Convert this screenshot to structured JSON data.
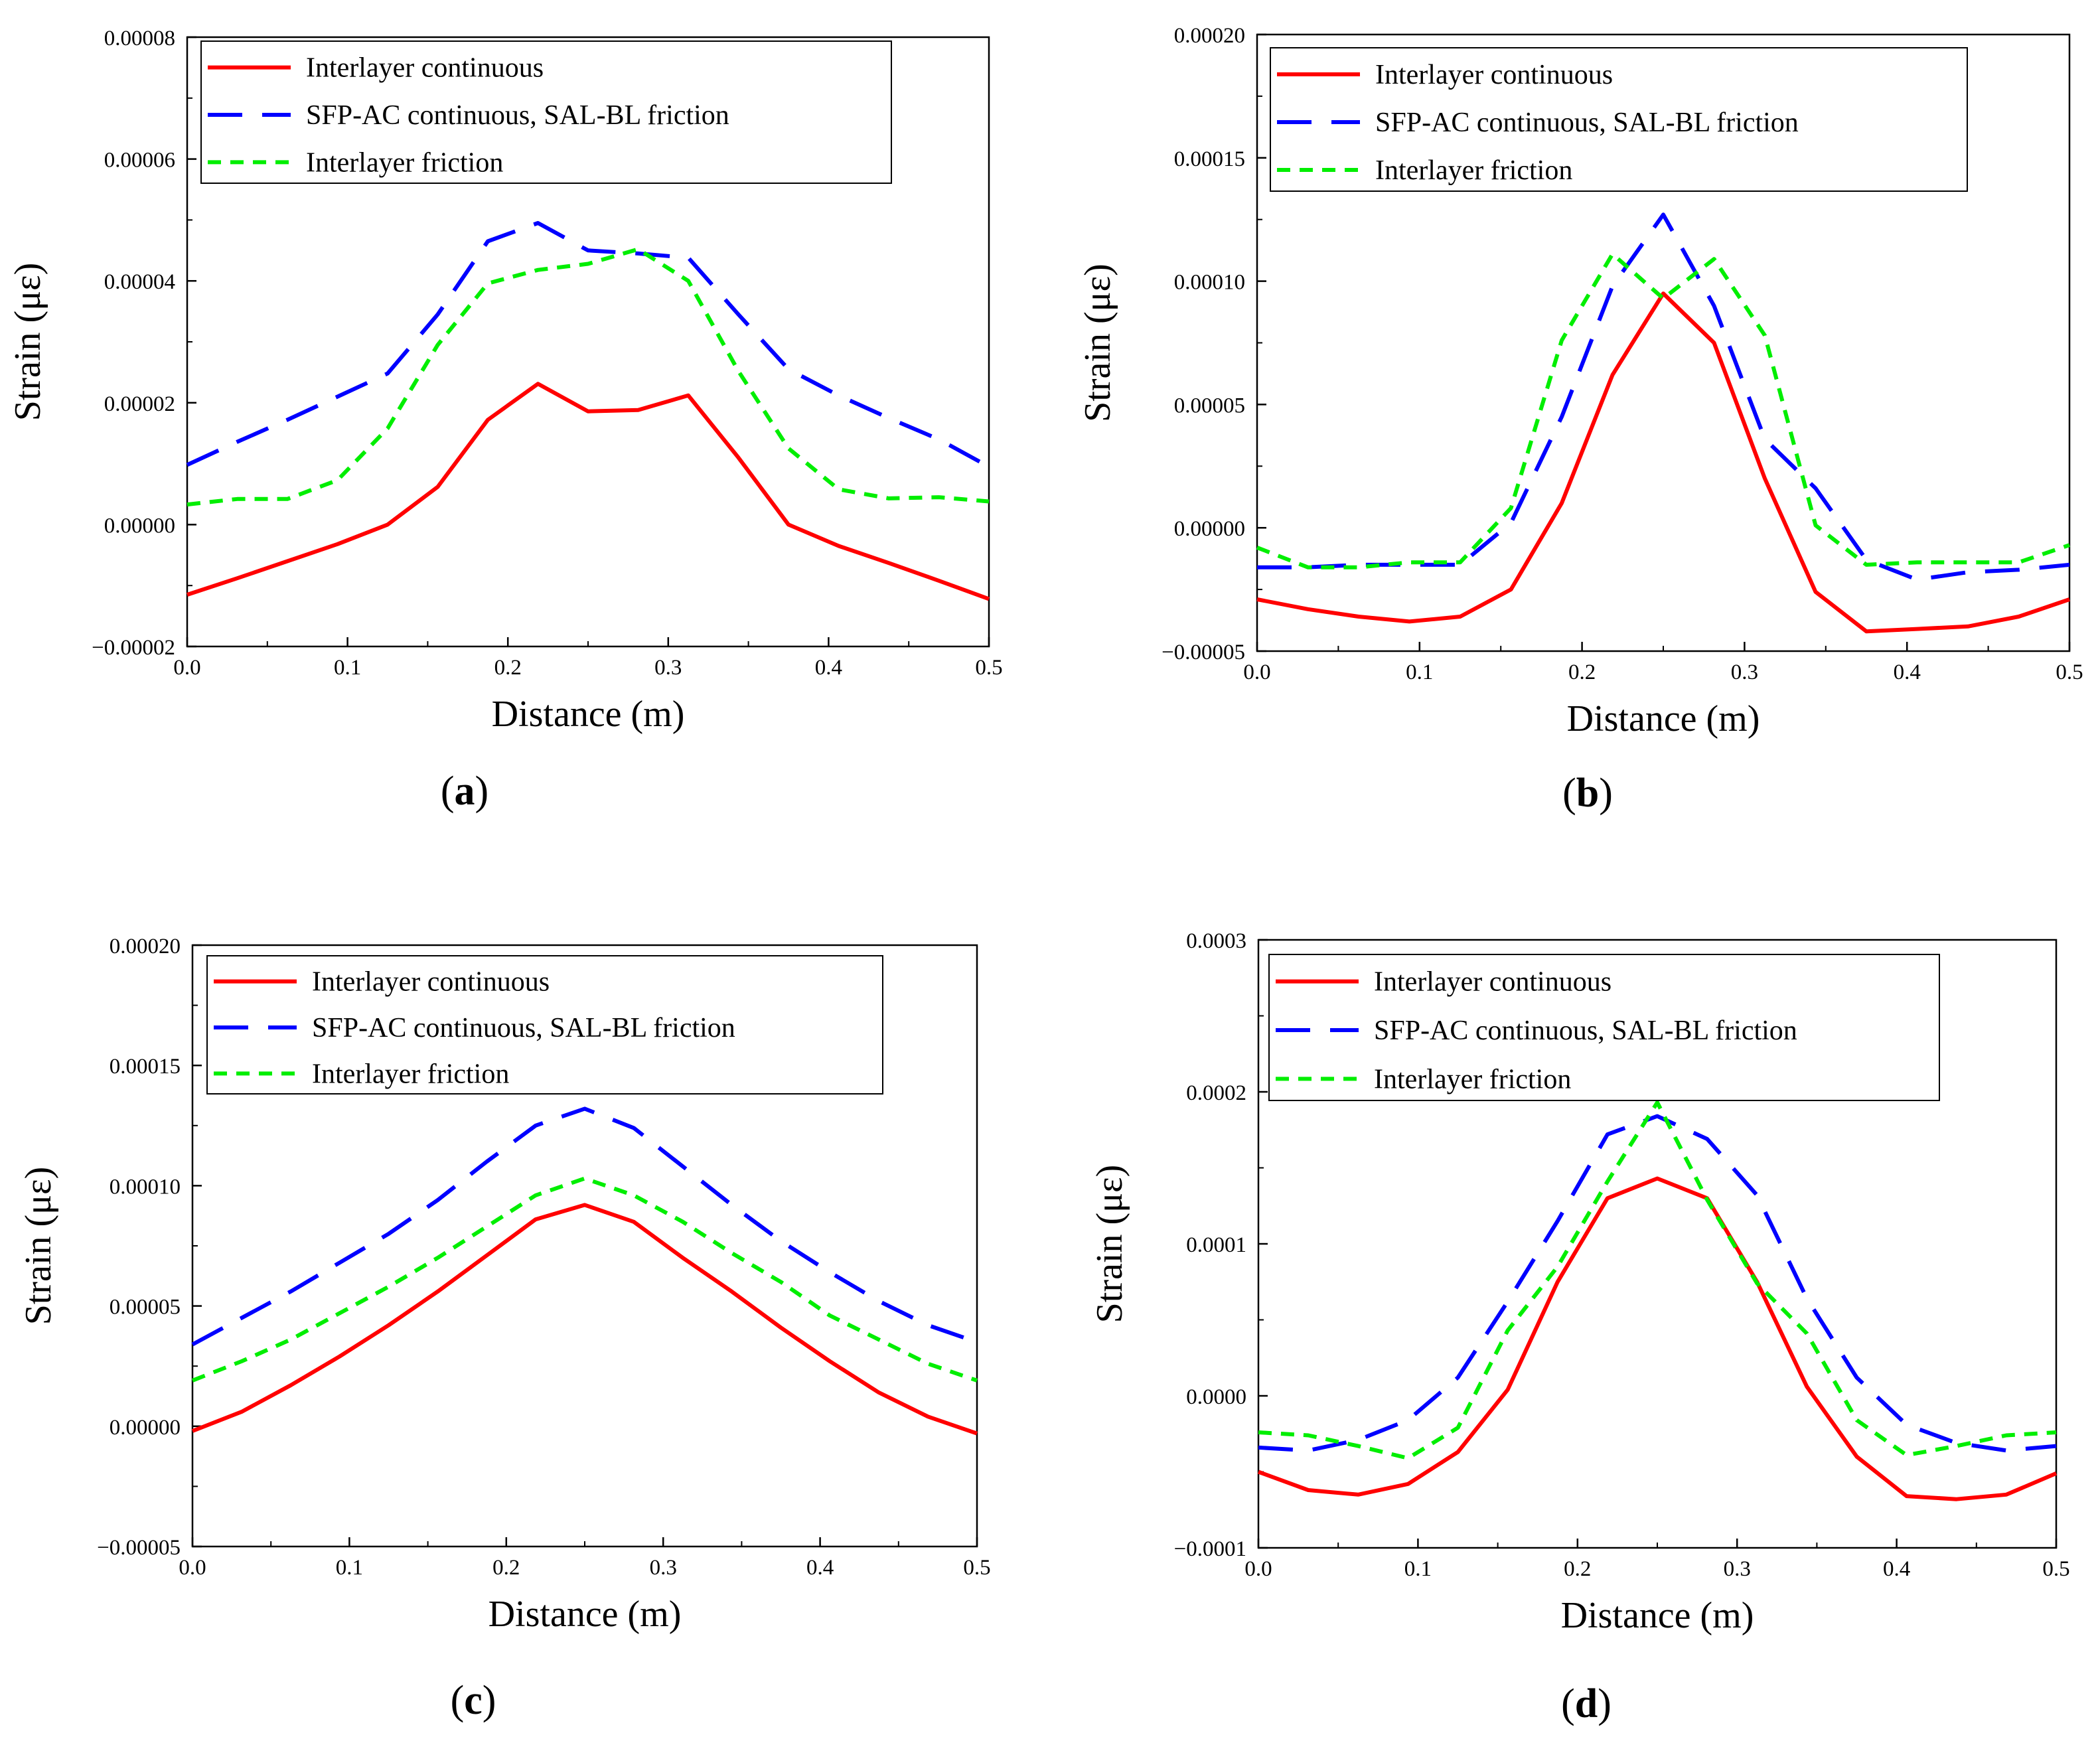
{
  "legend_labels": [
    "Interlayer continuous",
    "SFP-AC continuous, SAL-BL friction",
    "Interlayer friction"
  ],
  "series_colors": [
    "#ff0000",
    "#0000ff",
    "#00ee00"
  ],
  "chart_data": [
    {
      "type": "line",
      "panel": "a",
      "xlabel": "Distance (m)",
      "ylabel": "Strain (με)",
      "xlim": [
        0,
        0.5
      ],
      "ylim": [
        -2e-05,
        8e-05
      ],
      "xticks": [
        "0.0",
        "0.1",
        "0.2",
        "0.3",
        "0.4",
        "0.5"
      ],
      "yticks": [
        "−0.00002",
        "0.00000",
        "0.00002",
        "0.00004",
        "0.00006",
        "0.00008"
      ],
      "x": [
        0,
        0.03125,
        0.0625,
        0.09375,
        0.125,
        0.15625,
        0.1875,
        0.21875,
        0.25,
        0.28125,
        0.3125,
        0.34375,
        0.375,
        0.40625,
        0.4375,
        0.46875,
        0.5
      ],
      "series": [
        {
          "name": "Interlayer continuous",
          "values": [
            -1.15e-05,
            -8.8e-06,
            -6e-06,
            -3.2e-06,
            0,
            6.2e-06,
            1.72e-05,
            2.31e-05,
            1.86e-05,
            1.88e-05,
            2.12e-05,
            1.1e-05,
            0,
            -3.5e-06,
            -6.3e-06,
            -9.2e-06,
            -1.22e-05
          ]
        },
        {
          "name": "SFP-AC continuous, SAL-BL friction",
          "values": [
            9.8e-06,
            1.36e-05,
            1.72e-05,
            2.1e-05,
            2.48e-05,
            3.45e-05,
            4.65e-05,
            4.95e-05,
            4.5e-05,
            4.45e-05,
            4.38e-05,
            3.45e-05,
            2.55e-05,
            2.12e-05,
            1.75e-05,
            1.4e-05,
            9.5e-06
          ]
        },
        {
          "name": "Interlayer friction",
          "values": [
            3.3e-06,
            4.2e-06,
            4.2e-06,
            7.3e-06,
            1.58e-05,
            2.95e-05,
            3.96e-05,
            4.18e-05,
            4.28e-05,
            4.52e-05,
            4e-05,
            2.52e-05,
            1.25e-05,
            5.8e-06,
            4.3e-06,
            4.5e-06,
            3.8e-06
          ]
        }
      ]
    },
    {
      "type": "line",
      "panel": "b",
      "xlabel": "Distance (m)",
      "ylabel": "Strain (με)",
      "xlim": [
        0,
        0.5
      ],
      "ylim": [
        -5e-05,
        0.0002
      ],
      "xticks": [
        "0.0",
        "0.1",
        "0.2",
        "0.3",
        "0.4",
        "0.5"
      ],
      "yticks": [
        "−0.00005",
        "0.00000",
        "0.00005",
        "0.00010",
        "0.00015",
        "0.00020"
      ],
      "x": [
        0,
        0.03125,
        0.0625,
        0.09375,
        0.125,
        0.15625,
        0.1875,
        0.21875,
        0.25,
        0.28125,
        0.3125,
        0.34375,
        0.375,
        0.40625,
        0.4375,
        0.46875,
        0.5
      ],
      "series": [
        {
          "name": "Interlayer continuous",
          "values": [
            -2.9e-05,
            -3.3e-05,
            -3.6e-05,
            -3.8e-05,
            -3.6e-05,
            -2.5e-05,
            1e-05,
            6.2e-05,
            9.5e-05,
            7.5e-05,
            2e-05,
            -2.6e-05,
            -4.2e-05,
            -4.1e-05,
            -4e-05,
            -3.6e-05,
            -2.9e-05
          ]
        },
        {
          "name": "SFP-AC continuous, SAL-BL friction",
          "values": [
            -1.6e-05,
            -1.6e-05,
            -1.5e-05,
            -1.5e-05,
            -1.5e-05,
            2e-06,
            4.5e-05,
            9.8e-05,
            0.000127,
            9e-05,
            3.6e-05,
            1.6e-05,
            -1.3e-05,
            -2.1e-05,
            -1.8e-05,
            -1.7e-05,
            -1.5e-05
          ]
        },
        {
          "name": "Interlayer friction",
          "values": [
            -8e-06,
            -1.6e-05,
            -1.6e-05,
            -1.4e-05,
            -1.4e-05,
            8e-06,
            7.6e-05,
            0.000111,
            9.3e-05,
            0.000109,
            7.8e-05,
            1e-06,
            -1.5e-05,
            -1.4e-05,
            -1.4e-05,
            -1.4e-05,
            -7e-06
          ]
        }
      ]
    },
    {
      "type": "line",
      "panel": "c",
      "xlabel": "Distance (m)",
      "ylabel": "Strain (με)",
      "xlim": [
        0,
        0.5
      ],
      "ylim": [
        -5e-05,
        0.0002
      ],
      "xticks": [
        "0.0",
        "0.1",
        "0.2",
        "0.3",
        "0.4",
        "0.5"
      ],
      "yticks": [
        "−0.00005",
        "0.00000",
        "0.00005",
        "0.00010",
        "0.00015",
        "0.00020"
      ],
      "x": [
        0,
        0.03125,
        0.0625,
        0.09375,
        0.125,
        0.15625,
        0.1875,
        0.21875,
        0.25,
        0.28125,
        0.3125,
        0.34375,
        0.375,
        0.40625,
        0.4375,
        0.46875,
        0.5
      ],
      "series": [
        {
          "name": "Interlayer continuous",
          "values": [
            -2e-06,
            6e-06,
            1.7e-05,
            2.9e-05,
            4.2e-05,
            5.6e-05,
            7.1e-05,
            8.6e-05,
            9.2e-05,
            8.5e-05,
            7e-05,
            5.6e-05,
            4.1e-05,
            2.7e-05,
            1.4e-05,
            4e-06,
            -3e-06
          ]
        },
        {
          "name": "SFP-AC continuous, SAL-BL friction",
          "values": [
            3.4e-05,
            4.5e-05,
            5.6e-05,
            6.8e-05,
            8e-05,
            9.4e-05,
            0.00011,
            0.000125,
            0.000132,
            0.000124,
            0.000108,
            9.2e-05,
            7.7e-05,
            6.4e-05,
            5.2e-05,
            4.2e-05,
            3.5e-05
          ]
        },
        {
          "name": "Interlayer friction",
          "values": [
            1.9e-05,
            2.7e-05,
            3.6e-05,
            4.7e-05,
            5.8e-05,
            7e-05,
            8.3e-05,
            9.6e-05,
            0.000103,
            9.6e-05,
            8.5e-05,
            7.2e-05,
            6e-05,
            4.6e-05,
            3.6e-05,
            2.6e-05,
            1.9e-05
          ]
        }
      ]
    },
    {
      "type": "line",
      "panel": "d",
      "xlabel": "Distance (m)",
      "ylabel": "Strain (με)",
      "xlim": [
        0,
        0.5
      ],
      "ylim": [
        -0.0001,
        0.0003
      ],
      "xticks": [
        "0.0",
        "0.1",
        "0.2",
        "0.3",
        "0.4",
        "0.5"
      ],
      "yticks": [
        "−0.0001",
        "0.0000",
        "0.0001",
        "0.0002",
        "0.0003"
      ],
      "x": [
        0,
        0.03125,
        0.0625,
        0.09375,
        0.125,
        0.15625,
        0.1875,
        0.21875,
        0.25,
        0.28125,
        0.3125,
        0.34375,
        0.375,
        0.40625,
        0.4375,
        0.46875,
        0.5
      ],
      "series": [
        {
          "name": "Interlayer continuous",
          "values": [
            -5e-05,
            -6.2e-05,
            -6.5e-05,
            -5.8e-05,
            -3.7e-05,
            4e-06,
            7.5e-05,
            0.00013,
            0.000143,
            0.00013,
            7.5e-05,
            6e-06,
            -4e-05,
            -6.6e-05,
            -6.8e-05,
            -6.5e-05,
            -5.1e-05
          ]
        },
        {
          "name": "SFP-AC continuous, SAL-BL friction",
          "values": [
            -3.4e-05,
            -3.6e-05,
            -2.9e-05,
            -1.6e-05,
            1.2e-05,
            6.2e-05,
            0.000115,
            0.000172,
            0.000184,
            0.000169,
            0.000132,
            6.4e-05,
            1.2e-05,
            -1.9e-05,
            -3.1e-05,
            -3.6e-05,
            -3.3e-05
          ]
        },
        {
          "name": "Interlayer friction",
          "values": [
            -2.4e-05,
            -2.6e-05,
            -3.3e-05,
            -4.1e-05,
            -2.1e-05,
            4.3e-05,
            8.5e-05,
            0.000141,
            0.000193,
            0.000129,
            7.4e-05,
            4.1e-05,
            -1.6e-05,
            -3.9e-05,
            -3.3e-05,
            -2.6e-05,
            -2.4e-05
          ]
        }
      ]
    }
  ]
}
